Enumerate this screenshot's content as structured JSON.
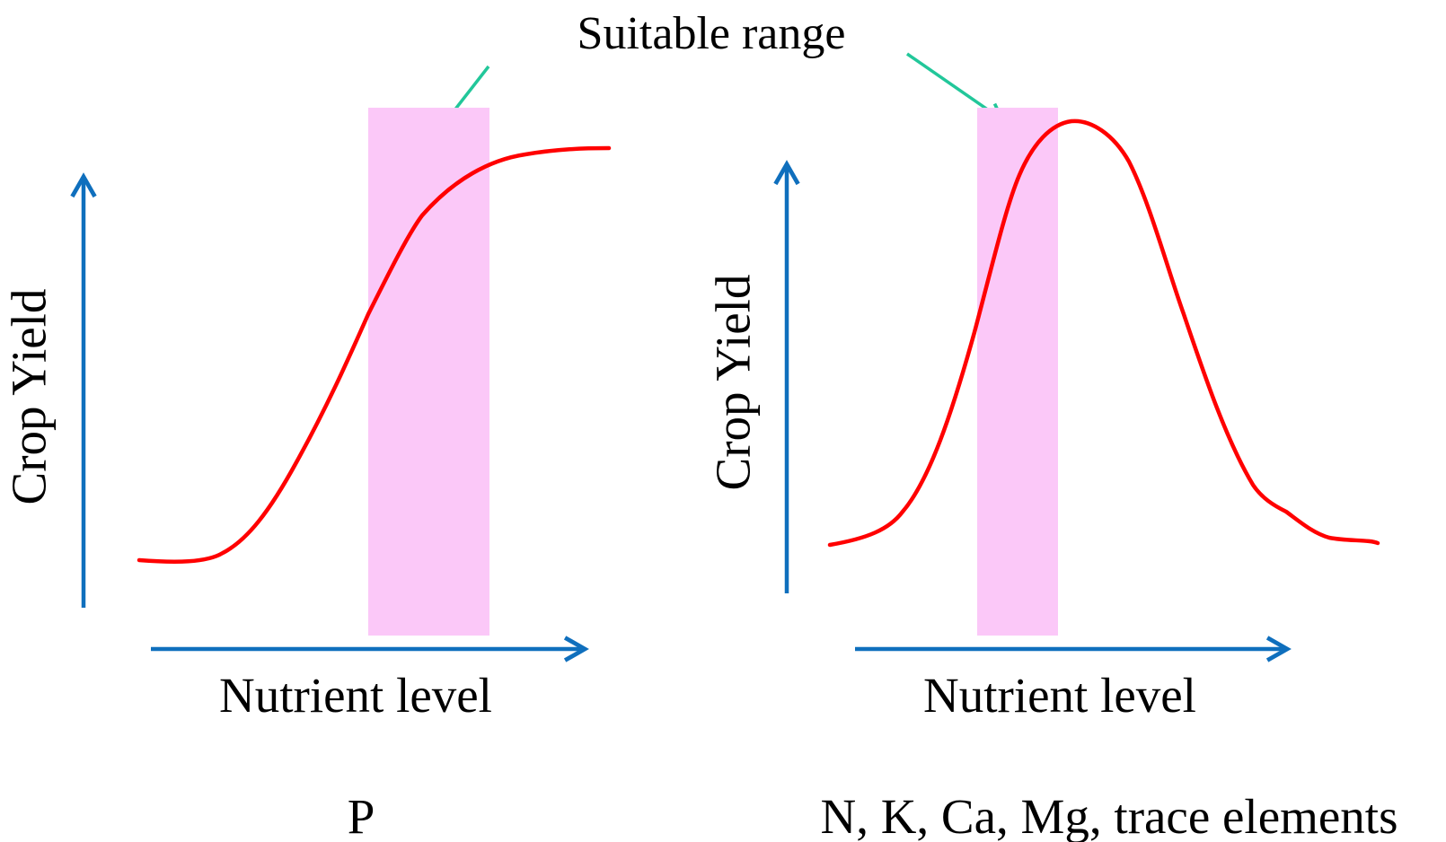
{
  "annotation": {
    "text": "Suitable range"
  },
  "colors": {
    "axis": "#0f6fbd",
    "curve": "#ff0000",
    "band": "#fbc8f8",
    "arrow": "#22c79a",
    "text": "#000000"
  },
  "panels": [
    {
      "id": "P",
      "y_axis_label": "Crop Yield",
      "x_axis_label": "Nutrient level",
      "caption": "P",
      "curve_shape": "sigmoid"
    },
    {
      "id": "NKCaMg",
      "y_axis_label": "Crop Yield",
      "x_axis_label": "Nutrient level",
      "caption": "N, K, Ca, Mg, trace elements",
      "curve_shape": "bell"
    }
  ]
}
